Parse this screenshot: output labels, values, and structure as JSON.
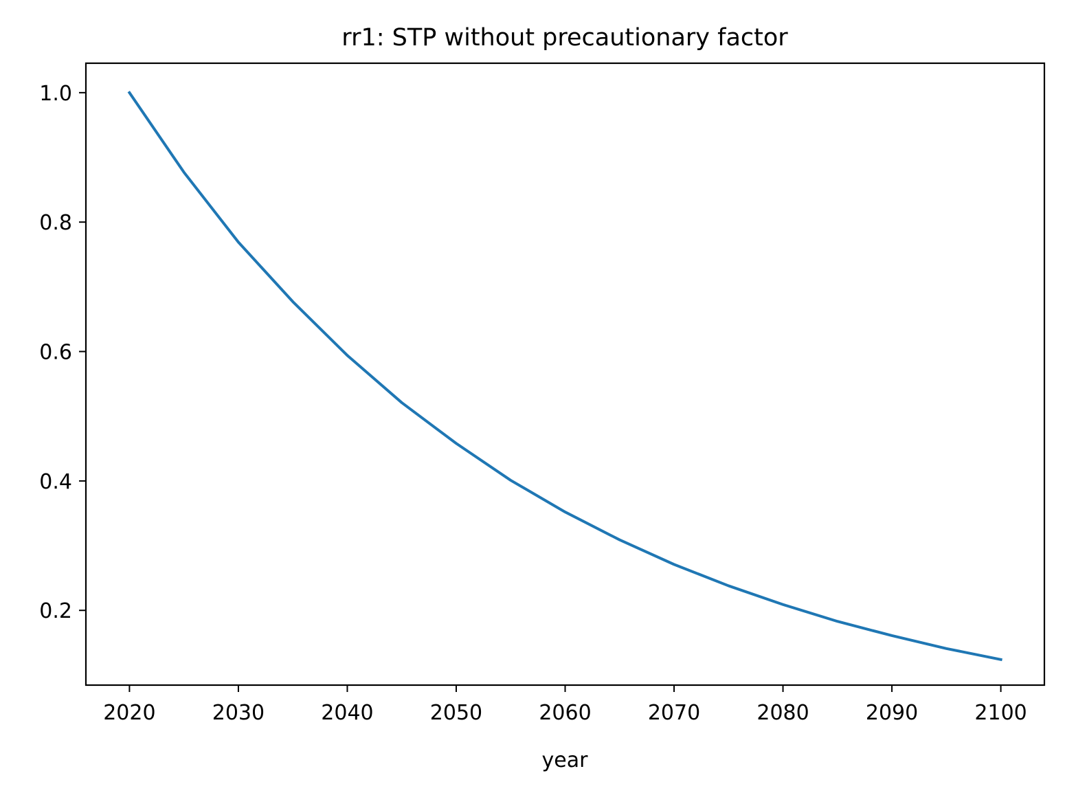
{
  "chart_data": {
    "type": "line",
    "title": "rr1: STP without precautionary factor",
    "xlabel": "year",
    "ylabel": "",
    "xlim": [
      2016,
      2104
    ],
    "ylim": [
      0.0845,
      1.0455
    ],
    "x_ticks": [
      2020,
      2030,
      2040,
      2050,
      2060,
      2070,
      2080,
      2090,
      2100
    ],
    "x_tick_labels": [
      "2020",
      "2030",
      "2040",
      "2050",
      "2060",
      "2070",
      "2080",
      "2090",
      "2100"
    ],
    "y_ticks": [
      0.2,
      0.4,
      0.6,
      0.8,
      1.0
    ],
    "y_tick_labels": [
      "0.2",
      "0.4",
      "0.6",
      "0.8",
      "1.0"
    ],
    "grid": false,
    "legend": "none",
    "series": [
      {
        "color": "#1f77b4",
        "x": [
          2020,
          2025,
          2030,
          2035,
          2040,
          2045,
          2050,
          2055,
          2060,
          2065,
          2070,
          2075,
          2080,
          2085,
          2090,
          2095,
          2100
        ],
        "y": [
          1.0,
          0.877,
          0.769,
          0.677,
          0.594,
          0.521,
          0.458,
          0.401,
          0.352,
          0.309,
          0.271,
          0.238,
          0.209,
          0.183,
          0.161,
          0.141,
          0.124
        ]
      }
    ]
  }
}
